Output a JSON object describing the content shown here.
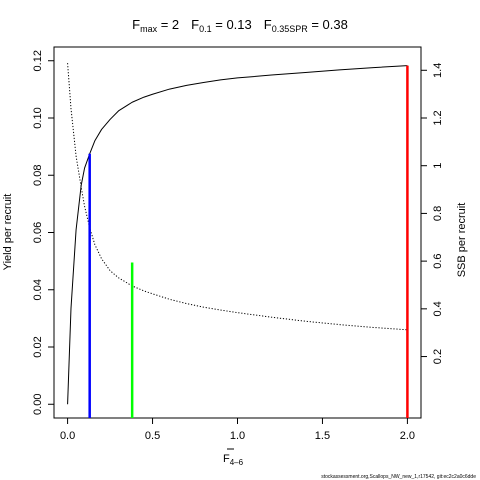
{
  "chart_data": {
    "type": "line",
    "title": {
      "fmax": {
        "sym": "F",
        "sub": "max",
        "rest": " = 2"
      },
      "f01": {
        "sym": "F",
        "sub": "0.1",
        "rest": " = 0.13"
      },
      "fspr": {
        "sym": "F",
        "sub": "0.35SPR",
        "rest": " = 0.38"
      }
    },
    "xlabel": {
      "sym": "F",
      "sub": "4–6"
    },
    "ylabel_left": "Yield per recruit",
    "ylabel_right": "SSB per recruit",
    "xlim": [
      -0.08,
      2.08
    ],
    "ylim_left": [
      -0.0048,
      0.1248
    ],
    "ylim_right": [
      -0.0576,
      1.4976
    ],
    "x_ticks": [
      0.0,
      0.5,
      1.0,
      1.5,
      2.0
    ],
    "x_tick_labels": [
      "0.0",
      "0.5",
      "1.0",
      "1.5",
      "2.0"
    ],
    "y_left_ticks": [
      0.0,
      0.02,
      0.04,
      0.06,
      0.08,
      0.1,
      0.12
    ],
    "y_left_tick_labels": [
      "0.00",
      "0.02",
      "0.04",
      "0.06",
      "0.08",
      "0.10",
      "0.12"
    ],
    "y_right_ticks": [
      0.2,
      0.4,
      0.6,
      0.8,
      1.0,
      1.2,
      1.4
    ],
    "y_right_tick_labels": [
      "0.2",
      "0.4",
      "0.6",
      "0.8",
      "1",
      "1.2",
      "1.4"
    ],
    "series": [
      {
        "axis": "left",
        "style": "solid",
        "color": "#000000",
        "x": [
          0.0,
          0.02,
          0.05,
          0.08,
          0.1,
          0.13,
          0.16,
          0.2,
          0.25,
          0.3,
          0.38,
          0.45,
          0.5,
          0.6,
          0.7,
          0.8,
          0.9,
          1.0,
          1.2,
          1.4,
          1.6,
          1.8,
          2.0
        ],
        "y": [
          0.0,
          0.0335,
          0.061,
          0.0765,
          0.0825,
          0.0875,
          0.092,
          0.096,
          0.0995,
          0.1025,
          0.1055,
          0.1073,
          0.1083,
          0.1101,
          0.1114,
          0.1124,
          0.1133,
          0.114,
          0.115,
          0.1159,
          0.1168,
          0.1176,
          0.1183
        ]
      },
      {
        "axis": "right",
        "style": "dotted",
        "color": "#000000",
        "x": [
          0.0,
          0.02,
          0.05,
          0.08,
          0.1,
          0.13,
          0.16,
          0.2,
          0.25,
          0.3,
          0.38,
          0.45,
          0.5,
          0.6,
          0.7,
          0.8,
          0.9,
          1.0,
          1.2,
          1.4,
          1.6,
          1.8,
          2.0
        ],
        "y": [
          1.43,
          1.24,
          1.04,
          0.91,
          0.83,
          0.74,
          0.67,
          0.61,
          0.56,
          0.53,
          0.496,
          0.475,
          0.463,
          0.44,
          0.422,
          0.407,
          0.395,
          0.384,
          0.365,
          0.348,
          0.334,
          0.322,
          0.312
        ]
      }
    ],
    "reference_lines": [
      {
        "x": 0.13,
        "y": 0.0875,
        "color": "#0000ff"
      },
      {
        "x": 0.38,
        "y": 0.0495,
        "color": "#00ff00"
      },
      {
        "x": 2.0,
        "y": 0.1183,
        "color": "#ff0000"
      }
    ],
    "footnote": "stockassessment.org,Scallops_NW_new_1,r17542, git:ec2c2a0c6dde"
  }
}
